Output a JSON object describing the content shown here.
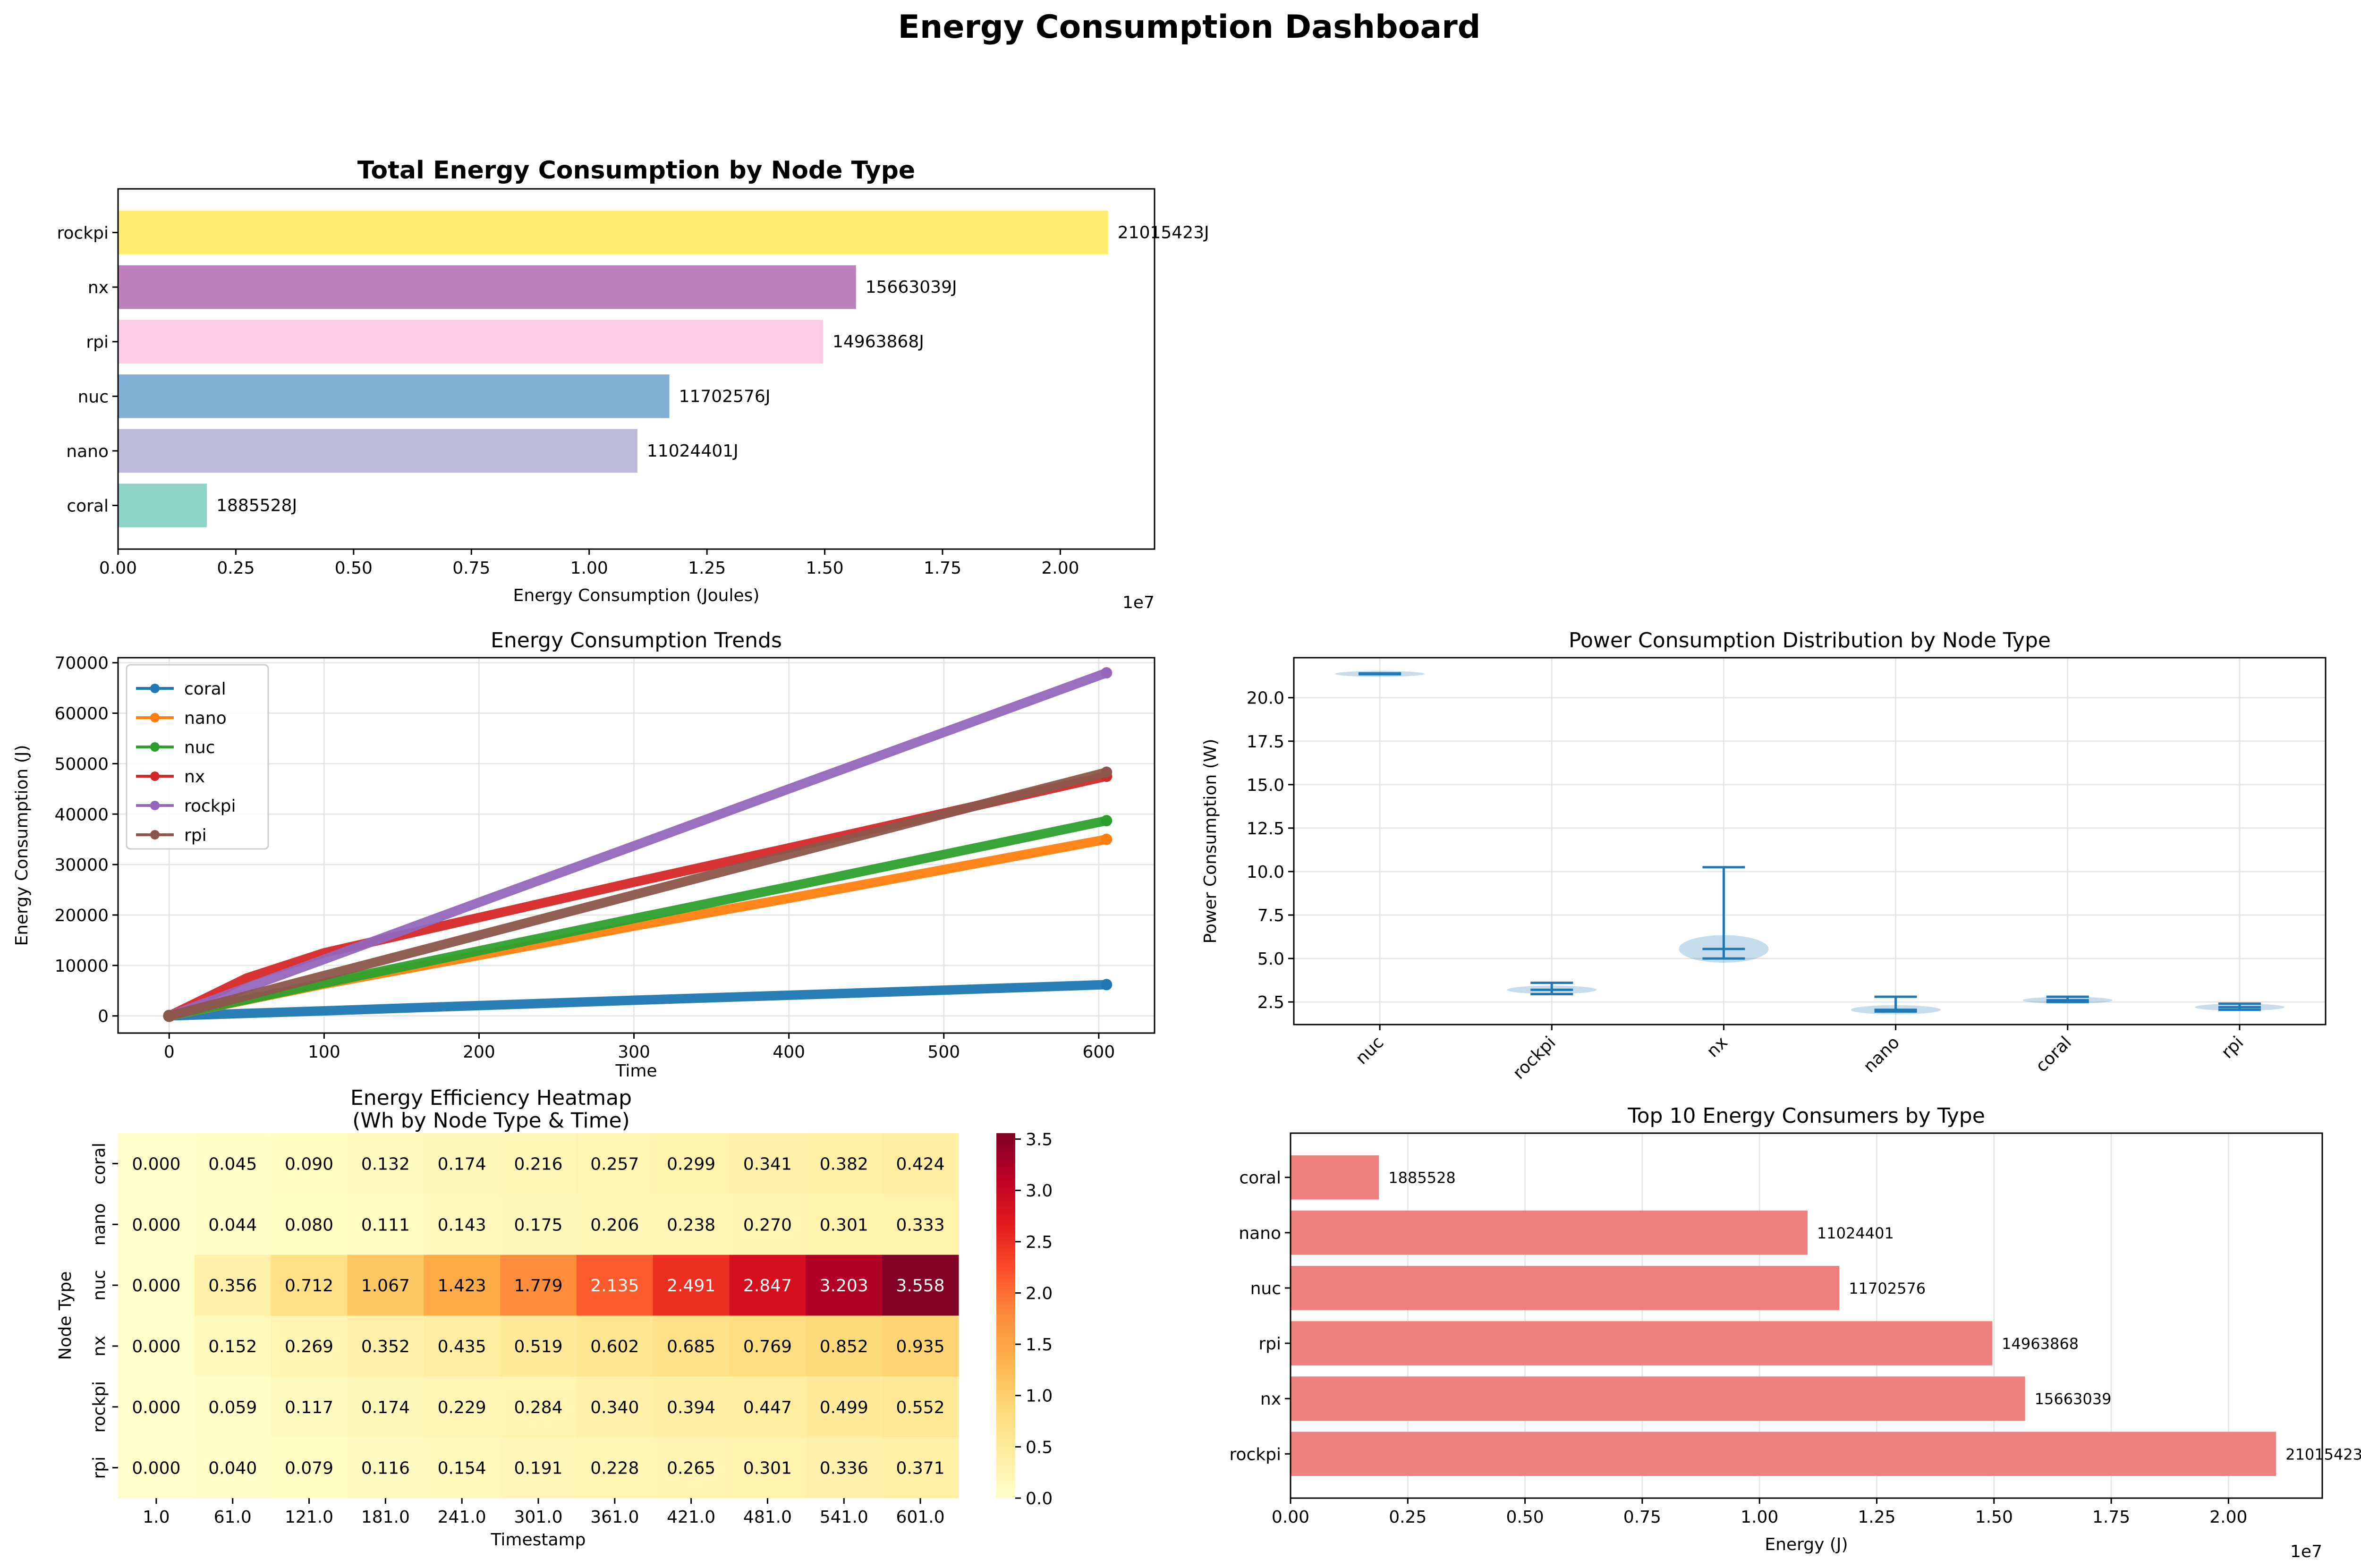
{
  "title": "Energy Consumption Dashboard",
  "chart_data": [
    {
      "id": "total",
      "type": "bar",
      "orientation": "horizontal",
      "title": "Total Energy Consumption by Node Type",
      "xlabel": "Energy Consumption (Joules)",
      "ylabel": "",
      "offset_text": "1e7",
      "xlim": [
        0,
        2.2
      ],
      "xticks": [
        0,
        0.25,
        0.5,
        0.75,
        1.0,
        1.25,
        1.5,
        1.75,
        2.0
      ],
      "xtick_labels": [
        "0.00",
        "0.25",
        "0.50",
        "0.75",
        "1.00",
        "1.25",
        "1.50",
        "1.75",
        "2.00"
      ],
      "categories": [
        "coral",
        "nano",
        "nuc",
        "rpi",
        "nx",
        "rockpi"
      ],
      "values": [
        1885528,
        11024401,
        11702576,
        14963868,
        15663039,
        21015423
      ],
      "data_labels": [
        "1885528J",
        "11024401J",
        "11702576J",
        "14963868J",
        "15663039J",
        "21015423J"
      ],
      "colors": [
        "#8dd3c7",
        "#bebada",
        "#80b1d3",
        "#fccde5",
        "#bc80bd",
        "#ffed6f"
      ]
    },
    {
      "id": "trend",
      "type": "line",
      "title": "Energy Consumption Trends",
      "xlabel": "Time",
      "ylabel": "Energy Consumption (J)",
      "xlim": [
        -33,
        636
      ],
      "ylim": [
        -3400,
        71000
      ],
      "xticks": [
        0,
        100,
        200,
        300,
        400,
        500,
        600
      ],
      "xtick_labels": [
        "0",
        "100",
        "200",
        "300",
        "400",
        "500",
        "600"
      ],
      "yticks": [
        0,
        10000,
        20000,
        30000,
        40000,
        50000,
        60000,
        70000
      ],
      "ytick_labels": [
        "0",
        "10000",
        "20000",
        "30000",
        "40000",
        "50000",
        "60000",
        "70000"
      ],
      "legend": "upper-left",
      "series": [
        {
          "name": "coral",
          "color": "#1f77b4",
          "x": [
            0,
            100,
            200,
            300,
            400,
            500,
            605
          ],
          "y": [
            0,
            1000,
            2050,
            3100,
            4100,
            5100,
            6200
          ]
        },
        {
          "name": "nano",
          "color": "#ff7f0e",
          "x": [
            0,
            100,
            200,
            300,
            400,
            500,
            605
          ],
          "y": [
            0,
            6300,
            12000,
            17800,
            23300,
            29000,
            35000
          ]
        },
        {
          "name": "nuc",
          "color": "#2ca02c",
          "x": [
            0,
            100,
            200,
            300,
            400,
            500,
            605
          ],
          "y": [
            0,
            6500,
            12900,
            19300,
            25600,
            32000,
            38700
          ]
        },
        {
          "name": "nx",
          "color": "#d62728",
          "x": [
            0,
            50,
            100,
            200,
            300,
            400,
            500,
            605
          ],
          "y": [
            0,
            7500,
            12500,
            19500,
            26500,
            33300,
            40200,
            47500
          ]
        },
        {
          "name": "rockpi",
          "color": "#9467bd",
          "x": [
            0,
            100,
            200,
            300,
            400,
            500,
            605
          ],
          "y": [
            0,
            11200,
            22500,
            33700,
            45000,
            56200,
            68000
          ]
        },
        {
          "name": "rpi",
          "color": "#8c564b",
          "x": [
            0,
            100,
            200,
            300,
            400,
            500,
            605
          ],
          "y": [
            0,
            8000,
            16000,
            24000,
            32000,
            40000,
            48300
          ]
        }
      ]
    },
    {
      "id": "violin",
      "type": "violin",
      "title": "Power Consumption Distribution by Node Type",
      "xlabel": "",
      "ylabel": "Power Consumption (W)",
      "ylim": [
        1.2,
        22.3
      ],
      "yticks": [
        2.5,
        5.0,
        7.5,
        10.0,
        12.5,
        15.0,
        17.5,
        20.0
      ],
      "ytick_labels": [
        "2.5",
        "5.0",
        "7.5",
        "10.0",
        "12.5",
        "15.0",
        "17.5",
        "20.0"
      ],
      "categories": [
        "nuc",
        "rockpi",
        "nx",
        "nano",
        "coral",
        "rpi"
      ],
      "min": [
        21.35,
        2.95,
        5.0,
        1.95,
        2.5,
        2.05
      ],
      "max": [
        21.4,
        3.6,
        10.25,
        2.8,
        2.8,
        2.4
      ],
      "median": [
        21.37,
        3.2,
        5.55,
        2.05,
        2.6,
        2.2
      ],
      "color": "#1f77b4"
    },
    {
      "id": "heatmap",
      "type": "heatmap",
      "title": "Energy Efficiency Heatmap\n(Wh by Node Type & Time)",
      "title_lines": [
        "Energy Efficiency Heatmap",
        "(Wh by Node Type & Time)"
      ],
      "xlabel": "Timestamp",
      "ylabel": "Node Type",
      "rows": [
        "coral",
        "nano",
        "nuc",
        "nx",
        "rockpi",
        "rpi"
      ],
      "cols": [
        "1.0",
        "61.0",
        "121.0",
        "181.0",
        "241.0",
        "301.0",
        "361.0",
        "421.0",
        "481.0",
        "541.0",
        "601.0"
      ],
      "values": [
        [
          0.0,
          0.045,
          0.09,
          0.132,
          0.174,
          0.216,
          0.257,
          0.299,
          0.341,
          0.382,
          0.424
        ],
        [
          0.0,
          0.044,
          0.08,
          0.111,
          0.143,
          0.175,
          0.206,
          0.238,
          0.27,
          0.301,
          0.333
        ],
        [
          0.0,
          0.356,
          0.712,
          1.067,
          1.423,
          1.779,
          2.135,
          2.491,
          2.847,
          3.203,
          3.558
        ],
        [
          0.0,
          0.152,
          0.269,
          0.352,
          0.435,
          0.519,
          0.602,
          0.685,
          0.769,
          0.852,
          0.935
        ],
        [
          0.0,
          0.059,
          0.117,
          0.174,
          0.229,
          0.284,
          0.34,
          0.394,
          0.447,
          0.499,
          0.552
        ],
        [
          0.0,
          0.04,
          0.079,
          0.116,
          0.154,
          0.191,
          0.228,
          0.265,
          0.301,
          0.336,
          0.371
        ]
      ],
      "cell_labels": [
        [
          "0.000",
          "0.045",
          "0.090",
          "0.132",
          "0.174",
          "0.216",
          "0.257",
          "0.299",
          "0.341",
          "0.382",
          "0.424"
        ],
        [
          "0.000",
          "0.044",
          "0.080",
          "0.111",
          "0.143",
          "0.175",
          "0.206",
          "0.238",
          "0.270",
          "0.301",
          "0.333"
        ],
        [
          "0.000",
          "0.356",
          "0.712",
          "1.067",
          "1.423",
          "1.779",
          "2.135",
          "2.491",
          "2.847",
          "3.203",
          "3.558"
        ],
        [
          "0.000",
          "0.152",
          "0.269",
          "0.352",
          "0.435",
          "0.519",
          "0.602",
          "0.685",
          "0.769",
          "0.852",
          "0.935"
        ],
        [
          "0.000",
          "0.059",
          "0.117",
          "0.174",
          "0.229",
          "0.284",
          "0.340",
          "0.394",
          "0.447",
          "0.499",
          "0.552"
        ],
        [
          "0.000",
          "0.040",
          "0.079",
          "0.116",
          "0.154",
          "0.191",
          "0.228",
          "0.265",
          "0.301",
          "0.336",
          "0.371"
        ]
      ],
      "colormap": "YlOrRd",
      "vmin": 0,
      "vmax": 3.558,
      "colorbar_ticks": [
        0,
        0.5,
        1.0,
        1.5,
        2.0,
        2.5,
        3.0,
        3.5
      ],
      "colorbar_tick_labels": [
        "0.0",
        "0.5",
        "1.0",
        "1.5",
        "2.0",
        "2.5",
        "3.0",
        "3.5"
      ]
    },
    {
      "id": "top10",
      "type": "bar",
      "orientation": "horizontal",
      "title": "Top 10 Energy Consumers by Type",
      "xlabel": "Energy (J)",
      "ylabel": "",
      "offset_text": "1e7",
      "xlim": [
        0,
        2.2
      ],
      "xticks": [
        0,
        0.25,
        0.5,
        0.75,
        1.0,
        1.25,
        1.5,
        1.75,
        2.0
      ],
      "xtick_labels": [
        "0.00",
        "0.25",
        "0.50",
        "0.75",
        "1.00",
        "1.25",
        "1.50",
        "1.75",
        "2.00"
      ],
      "categories": [
        "rockpi",
        "nx",
        "rpi",
        "nuc",
        "nano",
        "coral"
      ],
      "values": [
        21015423,
        15663039,
        14963868,
        11702576,
        11024401,
        1885528
      ],
      "data_labels": [
        "21015423",
        "15663039",
        "14963868",
        "11702576",
        "11024401",
        "1885528"
      ],
      "color": "#f08080"
    }
  ]
}
